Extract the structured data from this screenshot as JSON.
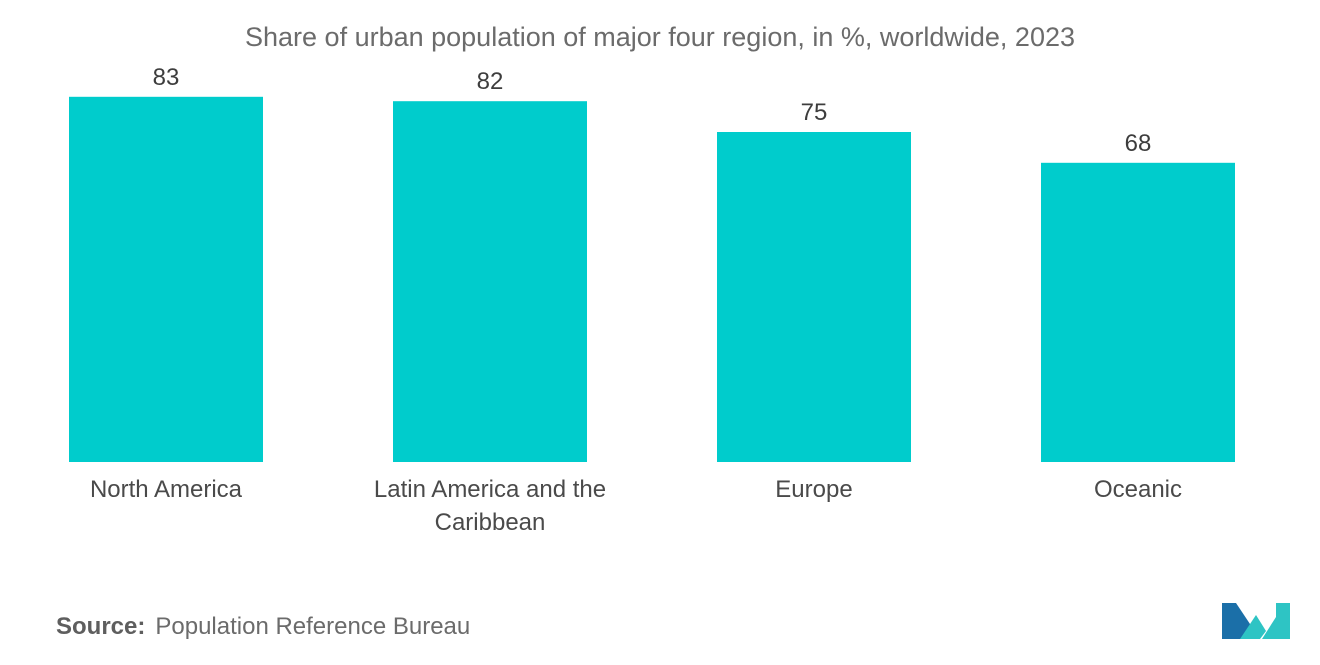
{
  "chart_data": {
    "type": "bar",
    "title": "Share of urban population of major four region, in %, worldwide, 2023",
    "categories": [
      [
        "North America"
      ],
      [
        "Latin America and the",
        "Caribbean"
      ],
      [
        "Europe"
      ],
      [
        "Oceanic"
      ]
    ],
    "values": [
      83,
      82,
      75,
      68
    ],
    "ylim": [
      0,
      100
    ],
    "grid": false,
    "legend": "none",
    "bar_color": "#00cccc"
  },
  "source": {
    "label": "Source:",
    "text": "Population Reference Bureau"
  },
  "colors": {
    "bar": "#00cccc",
    "logo_dark": "#1b6fa8",
    "logo_light": "#2ec4c4"
  },
  "logo": {
    "icon": "mordor-intelligence-logo-icon"
  }
}
